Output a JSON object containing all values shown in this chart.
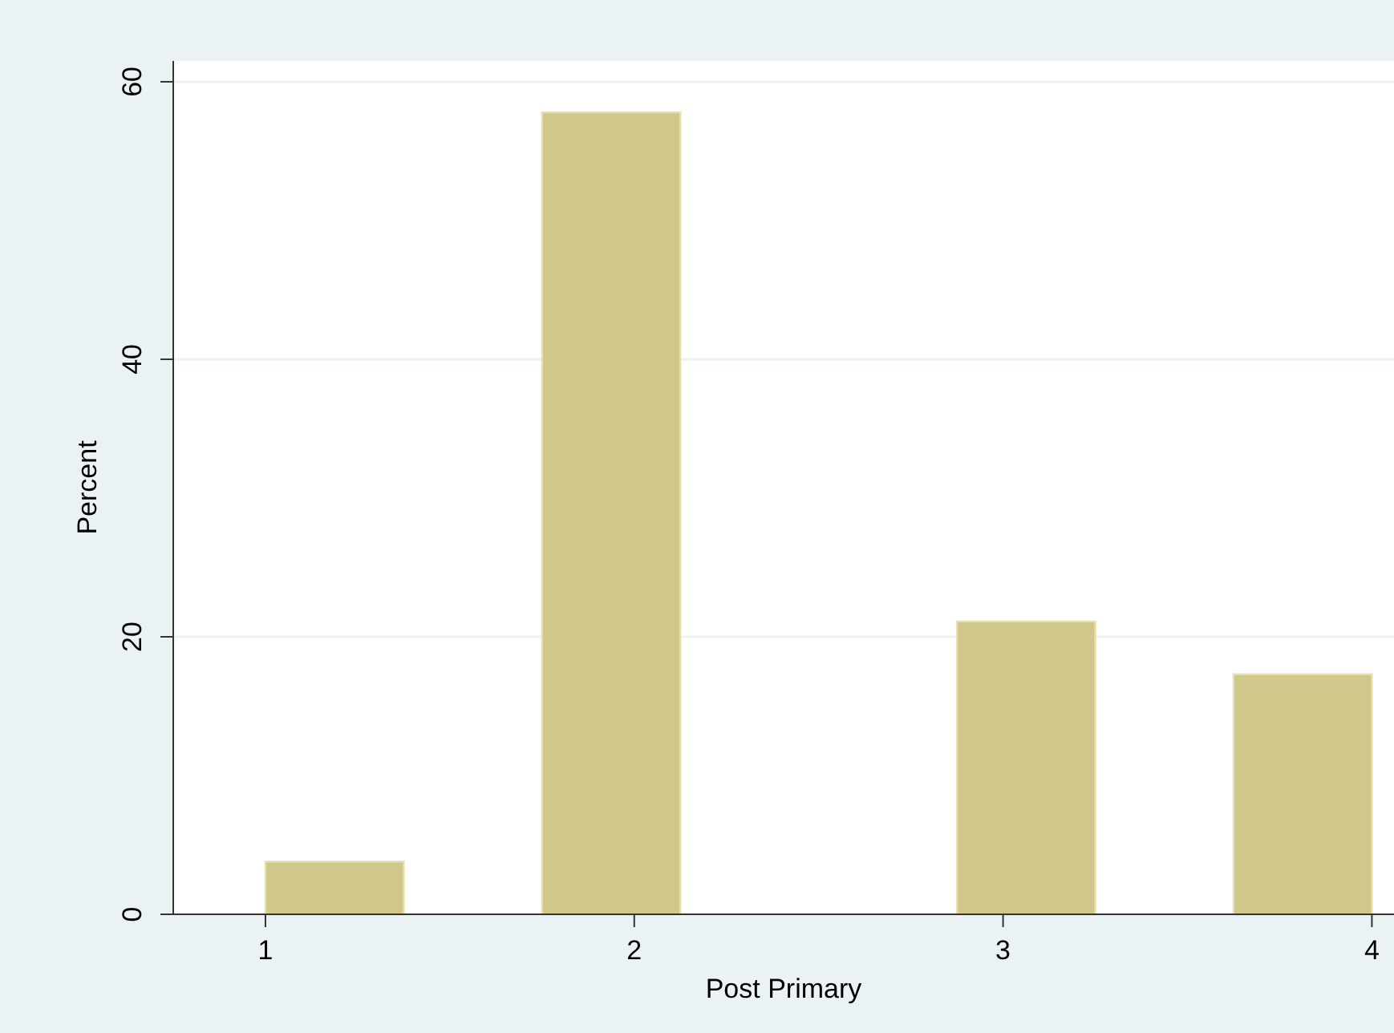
{
  "chart_data": {
    "type": "histogram",
    "xlabel": "Post Primary",
    "ylabel": "Percent",
    "bins": [
      1,
      1.375,
      1.75,
      2.125,
      2.5,
      2.875,
      3.25,
      3.625,
      4
    ],
    "values": [
      3.8,
      0,
      57.8,
      0,
      0,
      21.1,
      0,
      17.3
    ],
    "color": "#d0c88a",
    "xlim": [
      0.75,
      4.06
    ],
    "xticks": [
      1,
      2,
      3,
      4
    ],
    "ylim": [
      0,
      61.5
    ],
    "yticks": [
      0,
      20,
      40,
      60
    ],
    "grid": "y"
  }
}
